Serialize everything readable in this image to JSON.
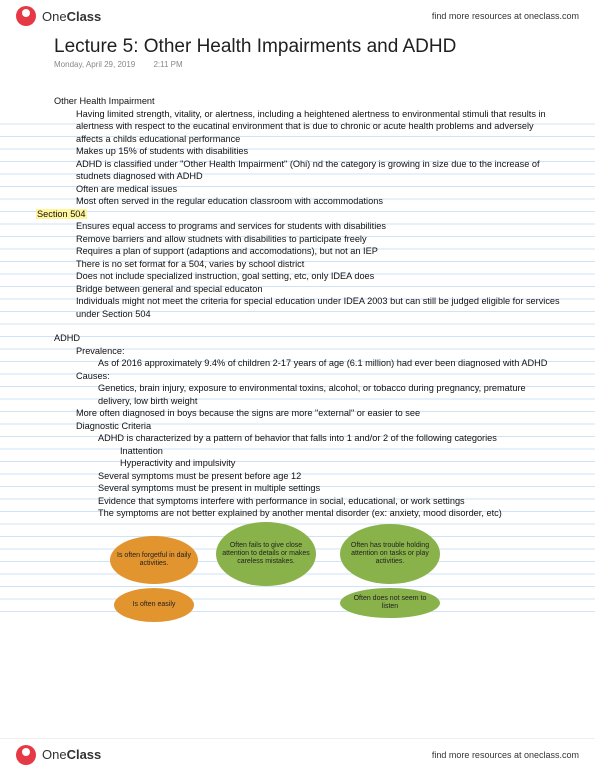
{
  "brand": {
    "left": "One",
    "right": "Class"
  },
  "resources_text": "find more resources at oneclass.com",
  "title": "Lecture 5: Other Health Impairments and ADHD",
  "date": "Monday, April 29, 2019",
  "time": "2:11 PM",
  "section504_label": "Section 504",
  "ohi": {
    "heading": "Other Health Impairment",
    "lines": [
      "Having limited strength, vitality, or alertness, including a heightened alertness to environmental stimuli that results in alertness with respect to the eucatinal environment that is due to chronic or acute health problems and adversely affects a childs educational performance",
      "Makes up 15% of students with disabilities",
      "ADHD is classified under \"Other Health Impairment\" (Ohi) nd the category is growing in size due to the increase of studnets diagnosed with ADHD",
      "Often are medical issues",
      "Most often served in the regular education classroom with accommodations"
    ]
  },
  "s504": [
    "Ensures equal access to programs and services for students with disabilities",
    "Remove barriers and allow studnets with disabilities to participate freely",
    "Requires a plan of support (adaptions and accomodations), but not an IEP",
    "There is no set format for a 504, varies by school district",
    "Does not include specialized instruction, goal setting, etc, only IDEA does",
    "Bridge between general and special educaton",
    "Individuals might not meet the criteria for special education under IDEA 2003 but can still be judged eligible for services under Section 504"
  ],
  "adhd": {
    "heading": "ADHD",
    "prevalence_label": "Prevalence:",
    "prevalence_text": "As of 2016 approximately 9.4% of children 2-17 years of age (6.1 million) had ever been diagnosed with ADHD",
    "causes_label": "Causes:",
    "causes_text": "Genetics, brain injury, exposure to environmental toxins, alcohol, or tobacco during pregnancy, premature delivery, low birth weight",
    "causes_note": "More often diagnosed in boys because the signs are more \"external\" or easier to see",
    "criteria_label": "Diagnostic Criteria",
    "criteria": [
      "ADHD is characterized by a pattern of behavior that falls into 1 and/or 2 of the following categories",
      "Inattention",
      "Hyperactivity and impulsivity",
      "Several symptoms must be present before age 12",
      "Several symptoms must be present in multiple settings",
      "Evidence that symptoms interfere with performance in social, educational, or work settings",
      "The symptoms are not better explained by another mental disorder (ex: anxiety, mood disorder, etc)"
    ]
  },
  "bubbles": {
    "b1": "Is often forgetful in daily activities.",
    "b2": "Often fails to give close attention to details or makes careless mistakes.",
    "b3": "Often has trouble holding attention on tasks or play activities.",
    "b4": "Is often easily",
    "b5": "Often does not seem to listen",
    "colors": {
      "orange": "#e2942f",
      "green": "#89b24a"
    }
  }
}
